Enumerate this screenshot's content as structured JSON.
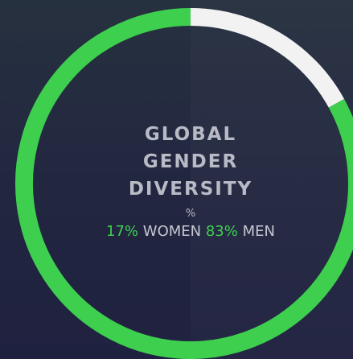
{
  "chart_data": {
    "type": "pie",
    "title": "GLOBAL GENDER DIVERSITY",
    "subtitle": "%",
    "categories": [
      "WOMEN",
      "MEN"
    ],
    "values": [
      17,
      83
    ],
    "value_labels": [
      "17%",
      "83%"
    ],
    "colors": [
      "#f2f2f2",
      "#3ecf4f"
    ],
    "label_color": "#3ecf4f"
  }
}
